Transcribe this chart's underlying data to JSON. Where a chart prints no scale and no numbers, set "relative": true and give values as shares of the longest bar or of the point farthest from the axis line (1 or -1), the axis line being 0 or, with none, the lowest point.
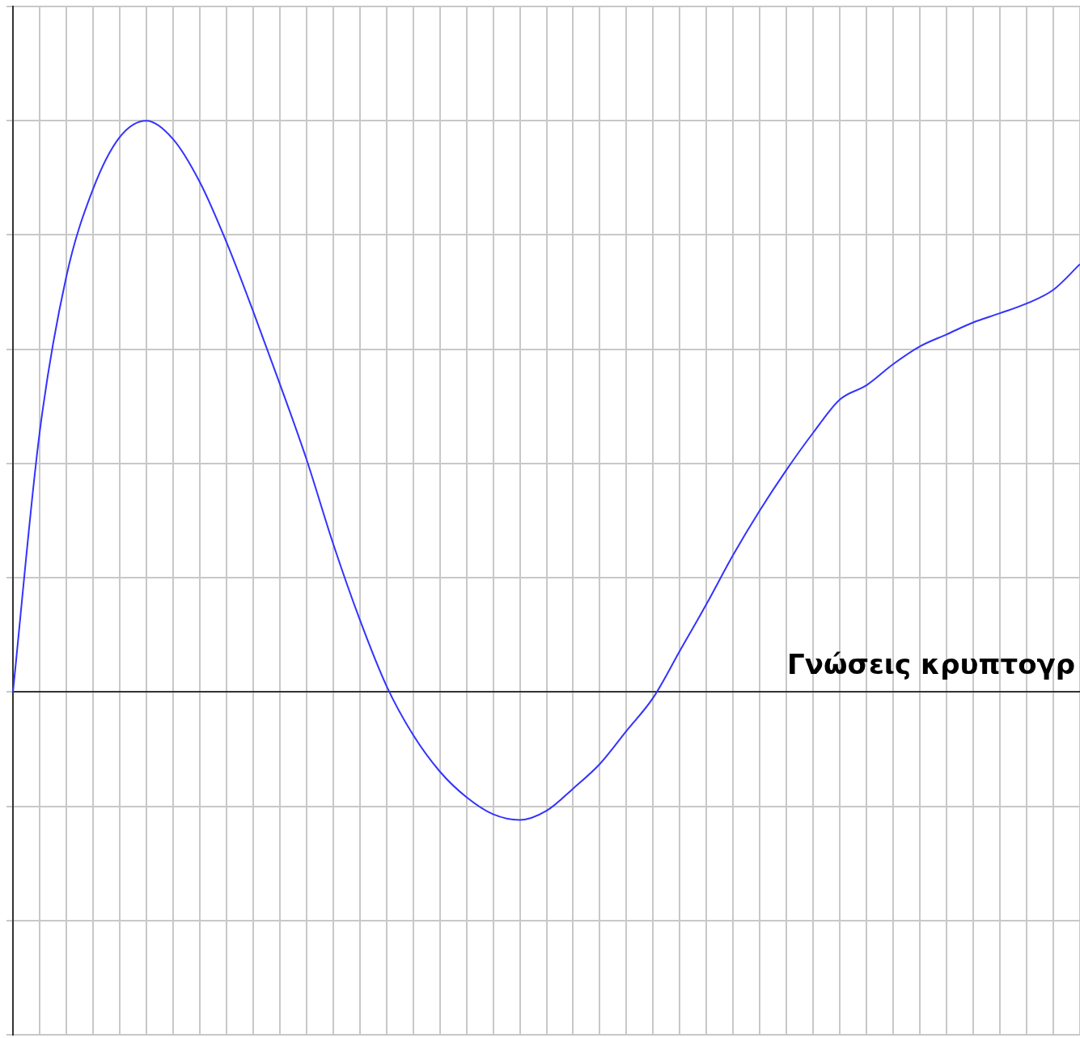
{
  "chart_data": {
    "type": "line",
    "xlabel": "Γνώσεις κρυπτογρ",
    "relative": true,
    "grid": true,
    "tick_labels": false,
    "marker": "none",
    "line_style": "solid",
    "color": "#3333ff",
    "categories": [
      null,
      null,
      null,
      null,
      null,
      null,
      null,
      null,
      null,
      null,
      null,
      null,
      null,
      null,
      null,
      null,
      null,
      null,
      null,
      null,
      null,
      null,
      null,
      null,
      null,
      null,
      null,
      null,
      null,
      null,
      null,
      null,
      null,
      null,
      null,
      null,
      null,
      null,
      null,
      null,
      null
    ],
    "values": [
      0,
      0.454,
      0.727,
      0.88,
      0.971,
      1,
      0.968,
      0.893,
      0.788,
      0.667,
      0.54,
      0.408,
      0.26,
      0.127,
      0.011,
      -0.075,
      -0.139,
      -0.184,
      -0.214,
      -0.224,
      -0.208,
      -0.169,
      -0.126,
      -0.068,
      -0.01,
      0.072,
      0.154,
      0.24,
      0.318,
      0.389,
      0.454,
      0.512,
      0.537,
      0.574,
      0.605,
      0.626,
      0.647,
      0.663,
      0.68,
      0.704,
      0.749
    ]
  }
}
